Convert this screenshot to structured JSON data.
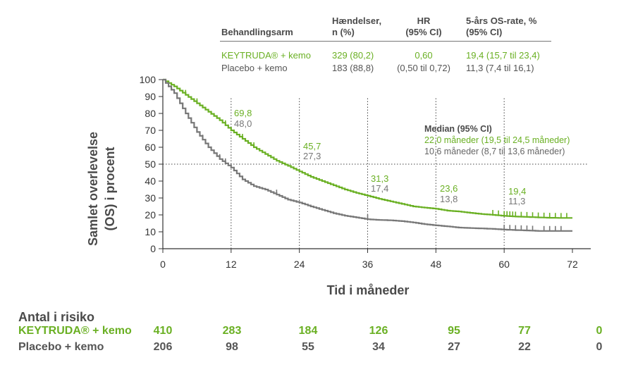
{
  "table": {
    "headers": {
      "arm": "Behandlingsarm",
      "events_l1": "Hændelser,",
      "events_l2": "n (%)",
      "hr_l1": "HR",
      "hr_l2": "(95% CI)",
      "os_l1": "5-års OS-rate, %",
      "os_l2": "(95% CI)"
    },
    "rows": [
      {
        "arm": "KEYTRUDA® + kemo",
        "events": "329 (80,2)",
        "hr": "0,60",
        "os": "19,4 (15,7 til 23,4)"
      },
      {
        "arm": "Placebo + kemo",
        "events": "183 (88,8)",
        "hr": "(0,50 til 0,72)",
        "os": "11,3 (7,4 til 16,1)"
      }
    ]
  },
  "median": {
    "title": "Median (95% CI)",
    "keytruda": "22,0 måneder (19,5 til 24,5 måneder)",
    "placebo": "10,6 måneder (8,7 til 13,6 måneder)"
  },
  "risk": {
    "title": "Antal i risiko",
    "rows": [
      {
        "label": "KEYTRUDA® + kemo",
        "values": [
          "410",
          "283",
          "184",
          "126",
          "95",
          "77",
          "0"
        ]
      },
      {
        "label": "Placebo + kemo",
        "values": [
          "206",
          "98",
          "55",
          "34",
          "27",
          "22",
          "0"
        ]
      }
    ]
  },
  "chart_data": {
    "type": "line",
    "title": "",
    "xlabel": "Tid i måneder",
    "ylabel": "Samlet overlevelse (OS) i procent",
    "xlim": [
      0,
      72
    ],
    "ylim": [
      0,
      100
    ],
    "xticks": [
      "0",
      "12",
      "24",
      "36",
      "48",
      "60",
      "72"
    ],
    "yticks": [
      "0",
      "10",
      "20",
      "30",
      "40",
      "50",
      "60",
      "70",
      "80",
      "90",
      "100"
    ],
    "grid": false,
    "reference_line_y": 50,
    "colors": {
      "keytruda": "#6ab023",
      "placebo": "#777777"
    },
    "series": [
      {
        "name": "KEYTRUDA® + kemo",
        "color": "#6ab023",
        "x": [
          0,
          2,
          4,
          6,
          8,
          10,
          12,
          14,
          16,
          18,
          20,
          22,
          24,
          26,
          28,
          30,
          32,
          34,
          36,
          38,
          40,
          42,
          44,
          46,
          48,
          50,
          52,
          54,
          56,
          58,
          60,
          62,
          64,
          66,
          68,
          70,
          72
        ],
        "y": [
          100,
          96,
          91,
          86,
          81,
          76,
          70,
          65,
          60,
          56,
          52,
          49,
          45.7,
          42.5,
          40,
          37.5,
          35,
          33,
          31.3,
          29.5,
          28,
          26.5,
          25,
          24.3,
          23.6,
          22.5,
          22,
          21.2,
          20.5,
          20,
          19.4,
          19,
          18.8,
          18.5,
          18.3,
          18.2,
          18.2
        ]
      },
      {
        "name": "Placebo + kemo",
        "color": "#777777",
        "x": [
          0,
          2,
          4,
          6,
          8,
          10,
          12,
          14,
          16,
          18,
          20,
          22,
          24,
          26,
          28,
          30,
          32,
          34,
          36,
          38,
          40,
          42,
          44,
          46,
          48,
          50,
          52,
          54,
          56,
          58,
          60,
          62,
          64,
          66,
          68,
          70,
          72
        ],
        "y": [
          100,
          92,
          80,
          69,
          60,
          53,
          48,
          41,
          37,
          35,
          32,
          29,
          27.3,
          25,
          23,
          21,
          19.5,
          18.5,
          17.4,
          17,
          16.8,
          16.3,
          15.5,
          14.5,
          13.8,
          13.2,
          12.5,
          12.2,
          12,
          11.7,
          11.3,
          11,
          10.8,
          10.5,
          10.5,
          10.5,
          10.5
        ]
      }
    ],
    "annotations": [
      {
        "x": 12,
        "keytruda": "69,8",
        "placebo": "48,0"
      },
      {
        "x": 24,
        "keytruda": "45,7",
        "placebo": "27,3"
      },
      {
        "x": 36,
        "keytruda": "31,3",
        "placebo": "17,4"
      },
      {
        "x": 48,
        "keytruda": "23,6",
        "placebo": "13,8"
      },
      {
        "x": 60,
        "keytruda": "19,4",
        "placebo": "11,3"
      }
    ]
  }
}
